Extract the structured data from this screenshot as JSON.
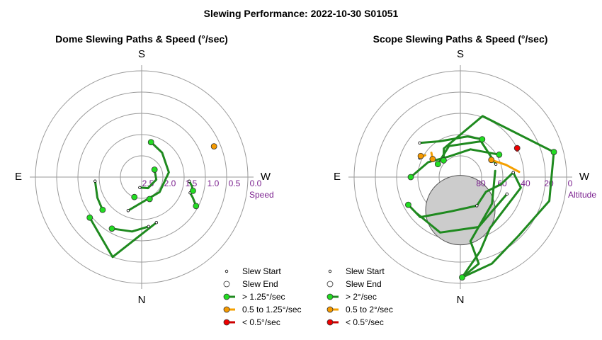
{
  "title": "Slewing Performance: 2022-10-30 S01051",
  "colors": {
    "fast": "#1f8a1f",
    "fast_fill": "#22dd22",
    "mid": "#f5a000",
    "mid_fill": "#f59a00",
    "slow": "#cc0000",
    "slow_fill": "#ee0000",
    "ring": "#9a9a9a",
    "tick": "#7a1f8e",
    "moon_fill": "#cccccc",
    "moon_stroke": "#555555"
  },
  "chart_data": [
    {
      "type": "polar-path",
      "title": "Dome Slewing Paths & Speed (°/sec)",
      "directions": {
        "top": "S",
        "bottom": "N",
        "left": "E",
        "right": "W"
      },
      "radial_label": "Speed",
      "radial_axis": {
        "min": 0.0,
        "max": 3.0,
        "direction": "decreasing-outward-from-2.5-at-center"
      },
      "ticks": [
        "2.5",
        "2.0",
        "1.5",
        "1.0",
        "0.5",
        "0.0"
      ],
      "tick_values": [
        2.5,
        2.0,
        1.5,
        1.0,
        0.5,
        0.0
      ],
      "legend": [
        {
          "marker": "start",
          "label": "Slew Start"
        },
        {
          "marker": "end",
          "label": "Slew End"
        },
        {
          "marker": "fast",
          "label": "> 1.25°/sec"
        },
        {
          "marker": "mid",
          "label": "0.5 to 1.25°/sec"
        },
        {
          "marker": "slow",
          "label": "< 0.5°/sec"
        }
      ],
      "paths": [
        {
          "speed": "fast",
          "points": [
            [
              162,
              0.45
            ],
            [
              200,
              0.8
            ],
            [
              232,
              0.62
            ]
          ]
        },
        {
          "speed": "fast",
          "points": [
            [
              172,
              0.47
            ],
            [
              190,
              0.52
            ],
            [
              210,
              0.56
            ]
          ]
        },
        {
          "speed": "fast",
          "points": [
            [
              202,
              0.34
            ],
            [
              180,
              0.24
            ],
            [
              130,
              0.22
            ],
            [
              80,
              0.26
            ],
            [
              40,
              0.3
            ],
            [
              15,
              0.34
            ]
          ]
        },
        {
          "speed": "fast",
          "points": [
            [
              190,
              0.1
            ],
            [
              150,
              0.12
            ],
            [
              100,
              0.14
            ],
            [
              60,
              0.14
            ]
          ]
        },
        {
          "speed": "fast",
          "points": [
            [
              265,
              0.44
            ],
            [
              245,
              0.46
            ],
            [
              230,
              0.48
            ]
          ]
        },
        {
          "speed": "fast",
          "points": [
            [
              95,
              0.45
            ],
            [
              100,
              0.48
            ],
            [
              105,
              0.5
            ]
          ]
        },
        {
          "speed": "fast",
          "points": [
            [
              108,
              0.48
            ],
            [
              112,
              0.52
            ],
            [
              118,
              0.58
            ]
          ]
        },
        {
          "speed": "mid",
          "points": [
            [
              67,
              0.74
            ]
          ]
        }
      ],
      "ends": [
        {
          "speed": "fast",
          "point": [
            232,
            0.62
          ]
        },
        {
          "speed": "fast",
          "point": [
            210,
            0.56
          ]
        },
        {
          "speed": "fast",
          "point": [
            15,
            0.34
          ]
        },
        {
          "speed": "fast",
          "point": [
            60,
            0.14
          ]
        },
        {
          "speed": "fast",
          "point": [
            230,
            0.48
          ]
        },
        {
          "speed": "fast",
          "point": [
            105,
            0.5
          ]
        },
        {
          "speed": "fast",
          "point": [
            118,
            0.58
          ]
        },
        {
          "speed": "fast",
          "point": [
            160,
            0.22
          ]
        },
        {
          "speed": "fast",
          "point": [
            200,
            0.2
          ]
        },
        {
          "speed": "mid",
          "point": [
            67,
            0.74
          ]
        }
      ]
    },
    {
      "type": "polar-path",
      "title": "Scope Slewing Paths & Speed (°/sec)",
      "directions": {
        "top": "S",
        "bottom": "N",
        "left": "E",
        "right": "W"
      },
      "radial_label": "Altitude",
      "radial_axis": {
        "min": 0,
        "max": 90,
        "direction": "altitude-90-at-center"
      },
      "ticks": [
        "80",
        "60",
        "40",
        "20",
        "0"
      ],
      "tick_values": [
        80,
        60,
        40,
        20,
        0
      ],
      "legend": [
        {
          "marker": "start",
          "label": "Slew Start"
        },
        {
          "marker": "end",
          "label": "Slew End"
        },
        {
          "marker": "fast",
          "label": "> 2°/sec"
        },
        {
          "marker": "mid",
          "label": "0.5 to 2°/sec"
        },
        {
          "marker": "slow",
          "label": "< 0.5°/sec"
        }
      ],
      "moon": {
        "azimuth": 0,
        "altitude": 62,
        "radius_deg": 14
      },
      "paths": [
        {
          "speed": "fast",
          "points": [
            [
              -1,
              5
            ],
            [
              -20,
              12
            ],
            [
              -45,
              20
            ],
            [
              -75,
              12
            ],
            [
              -105,
              8
            ]
          ]
        },
        {
          "speed": "fast",
          "points": [
            [
              -1,
              5
            ],
            [
              -15,
              25
            ],
            [
              -30,
              40
            ],
            [
              -80,
              38
            ],
            [
              -95,
              45
            ]
          ]
        },
        {
          "speed": "fast",
          "points": [
            [
              -1,
              5
            ],
            [
              -12,
              15
            ],
            [
              -9,
              35
            ],
            [
              -50,
              55
            ],
            [
              -100,
              60
            ]
          ]
        },
        {
          "speed": "fast",
          "points": [
            [
              -105,
              8
            ],
            [
              -160,
              35
            ],
            [
              -210,
              62
            ],
            [
              -225,
              70
            ]
          ]
        },
        {
          "speed": "fast",
          "points": [
            [
              -95,
              45
            ],
            [
              -80,
              55
            ],
            [
              -60,
              65
            ],
            [
              -30,
              62
            ]
          ]
        },
        {
          "speed": "fast",
          "points": [
            [
              -30,
              62
            ],
            [
              15,
              60
            ],
            [
              45,
              42
            ],
            [
              62,
              40
            ]
          ]
        },
        {
          "speed": "fast",
          "points": [
            [
              -120,
              52
            ],
            [
              -160,
              65
            ],
            [
              -210,
              70
            ],
            [
              -245,
              60
            ],
            [
              -270,
              48
            ]
          ]
        },
        {
          "speed": "fast",
          "points": [
            [
              -70,
              48
            ],
            [
              -20,
              45
            ],
            [
              20,
              40
            ],
            [
              50,
              42
            ]
          ]
        },
        {
          "speed": "fast",
          "points": [
            [
              -110,
              58
            ],
            [
              -150,
              55
            ],
            [
              -200,
              62
            ],
            [
              -240,
              68
            ]
          ]
        },
        {
          "speed": "fast",
          "points": [
            [
              -230,
              45
            ],
            [
              -210,
              55
            ],
            [
              -170,
              55
            ],
            [
              -150,
              53
            ]
          ]
        },
        {
          "speed": "mid",
          "points": [
            [
              -237,
              62
            ],
            [
              -230,
              58
            ]
          ]
        },
        {
          "speed": "mid",
          "points": [
            [
              -119,
              60
            ],
            [
              -105,
              50
            ],
            [
              -95,
              40
            ]
          ]
        },
        {
          "speed": "mid",
          "points": [
            [
              -245,
              52
            ],
            [
              -238,
              55
            ]
          ]
        },
        {
          "speed": "slow",
          "points": [
            [
              -117,
              36
            ],
            [
              -115,
              37
            ]
          ]
        }
      ],
      "ends": [
        {
          "speed": "fast",
          "point": [
            -1,
            5
          ]
        },
        {
          "speed": "fast",
          "point": [
            -105,
            8
          ]
        },
        {
          "speed": "fast",
          "point": [
            -225,
            70
          ]
        },
        {
          "speed": "fast",
          "point": [
            -270,
            48
          ]
        },
        {
          "speed": "fast",
          "point": [
            -240,
            68
          ]
        },
        {
          "speed": "fast",
          "point": [
            -150,
            53
          ]
        },
        {
          "speed": "fast",
          "point": [
            62,
            40
          ]
        },
        {
          "speed": "fast",
          "point": [
            -120,
            52
          ]
        },
        {
          "speed": "mid",
          "point": [
            -237,
            62
          ]
        },
        {
          "speed": "mid",
          "point": [
            -119,
            60
          ]
        },
        {
          "speed": "mid",
          "point": [
            -242,
            52
          ]
        },
        {
          "speed": "slow",
          "point": [
            -117,
            36
          ]
        }
      ]
    }
  ]
}
